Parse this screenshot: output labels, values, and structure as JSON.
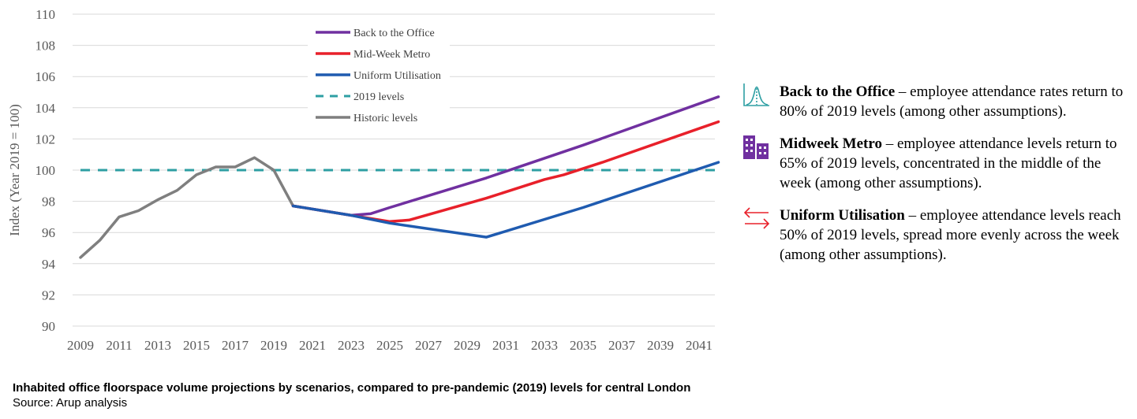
{
  "chart_data": {
    "type": "line",
    "ylabel": "Index (Year 2019 = 100)",
    "xlabel": "",
    "ylim": [
      90,
      110
    ],
    "xlim": [
      2009,
      2042
    ],
    "yticks": [
      90,
      92,
      94,
      96,
      98,
      100,
      102,
      104,
      106,
      108,
      110
    ],
    "xticks": [
      2009,
      2011,
      2013,
      2015,
      2017,
      2019,
      2021,
      2023,
      2025,
      2027,
      2029,
      2031,
      2033,
      2035,
      2037,
      2039,
      2041
    ],
    "grid": true,
    "legend_position": "top-center",
    "series": [
      {
        "name": "Back to the Office",
        "color": "#7030A0",
        "dash": false,
        "points": [
          [
            2020,
            97.7
          ],
          [
            2023,
            97.1
          ],
          [
            2024,
            97.2
          ],
          [
            2025,
            97.6
          ],
          [
            2030,
            99.5
          ],
          [
            2035,
            101.6
          ],
          [
            2042,
            104.7
          ]
        ]
      },
      {
        "name": "Mid-Week Metro",
        "color": "#E8202A",
        "dash": false,
        "points": [
          [
            2020,
            97.7
          ],
          [
            2023,
            97.1
          ],
          [
            2025,
            96.7
          ],
          [
            2026,
            96.8
          ],
          [
            2030,
            98.2
          ],
          [
            2033,
            99.4
          ],
          [
            2034,
            99.7
          ],
          [
            2036,
            100.5
          ],
          [
            2042,
            103.1
          ]
        ]
      },
      {
        "name": "Uniform Utilisation",
        "color": "#1F5BB0",
        "dash": false,
        "points": [
          [
            2020,
            97.7
          ],
          [
            2023,
            97.1
          ],
          [
            2025,
            96.6
          ],
          [
            2030,
            95.7
          ],
          [
            2035,
            97.6
          ],
          [
            2042,
            100.5
          ]
        ]
      },
      {
        "name": "2019 levels",
        "color": "#2E9FA3",
        "dash": true,
        "points": [
          [
            2009,
            100
          ],
          [
            2042,
            100
          ]
        ]
      },
      {
        "name": "Historic levels",
        "color": "#7F7F7F",
        "dash": false,
        "points": [
          [
            2009,
            94.4
          ],
          [
            2010,
            95.5
          ],
          [
            2011,
            97.0
          ],
          [
            2012,
            97.4
          ],
          [
            2013,
            98.1
          ],
          [
            2014,
            98.7
          ],
          [
            2015,
            99.7
          ],
          [
            2016,
            100.2
          ],
          [
            2017,
            100.2
          ],
          [
            2018,
            100.8
          ],
          [
            2019,
            100.0
          ],
          [
            2020,
            97.7
          ]
        ]
      }
    ]
  },
  "notes": [
    {
      "icon": "bell-curve-icon",
      "icon_color": "#2E9FA3",
      "bold": "Back to the Office",
      "text": " – employee attendance rates return to 80% of 2019 levels (among other assumptions)."
    },
    {
      "icon": "buildings-icon",
      "icon_color": "#7030A0",
      "bold": "Midweek Metro",
      "text": " – employee attendance levels return to 65% of 2019 levels, concentrated in the middle of the week (among other assumptions)."
    },
    {
      "icon": "arrows-exchange-icon",
      "icon_color": "#E8202A",
      "bold": "Uniform Utilisation",
      "text": " – employee attendance levels reach 50% of 2019 levels, spread more evenly across the week (among other assumptions)."
    }
  ],
  "caption": {
    "title": "Inhabited office floorspace volume projections by scenarios, compared to pre-pandemic (2019) levels for central London",
    "source": "Source: Arup analysis"
  }
}
